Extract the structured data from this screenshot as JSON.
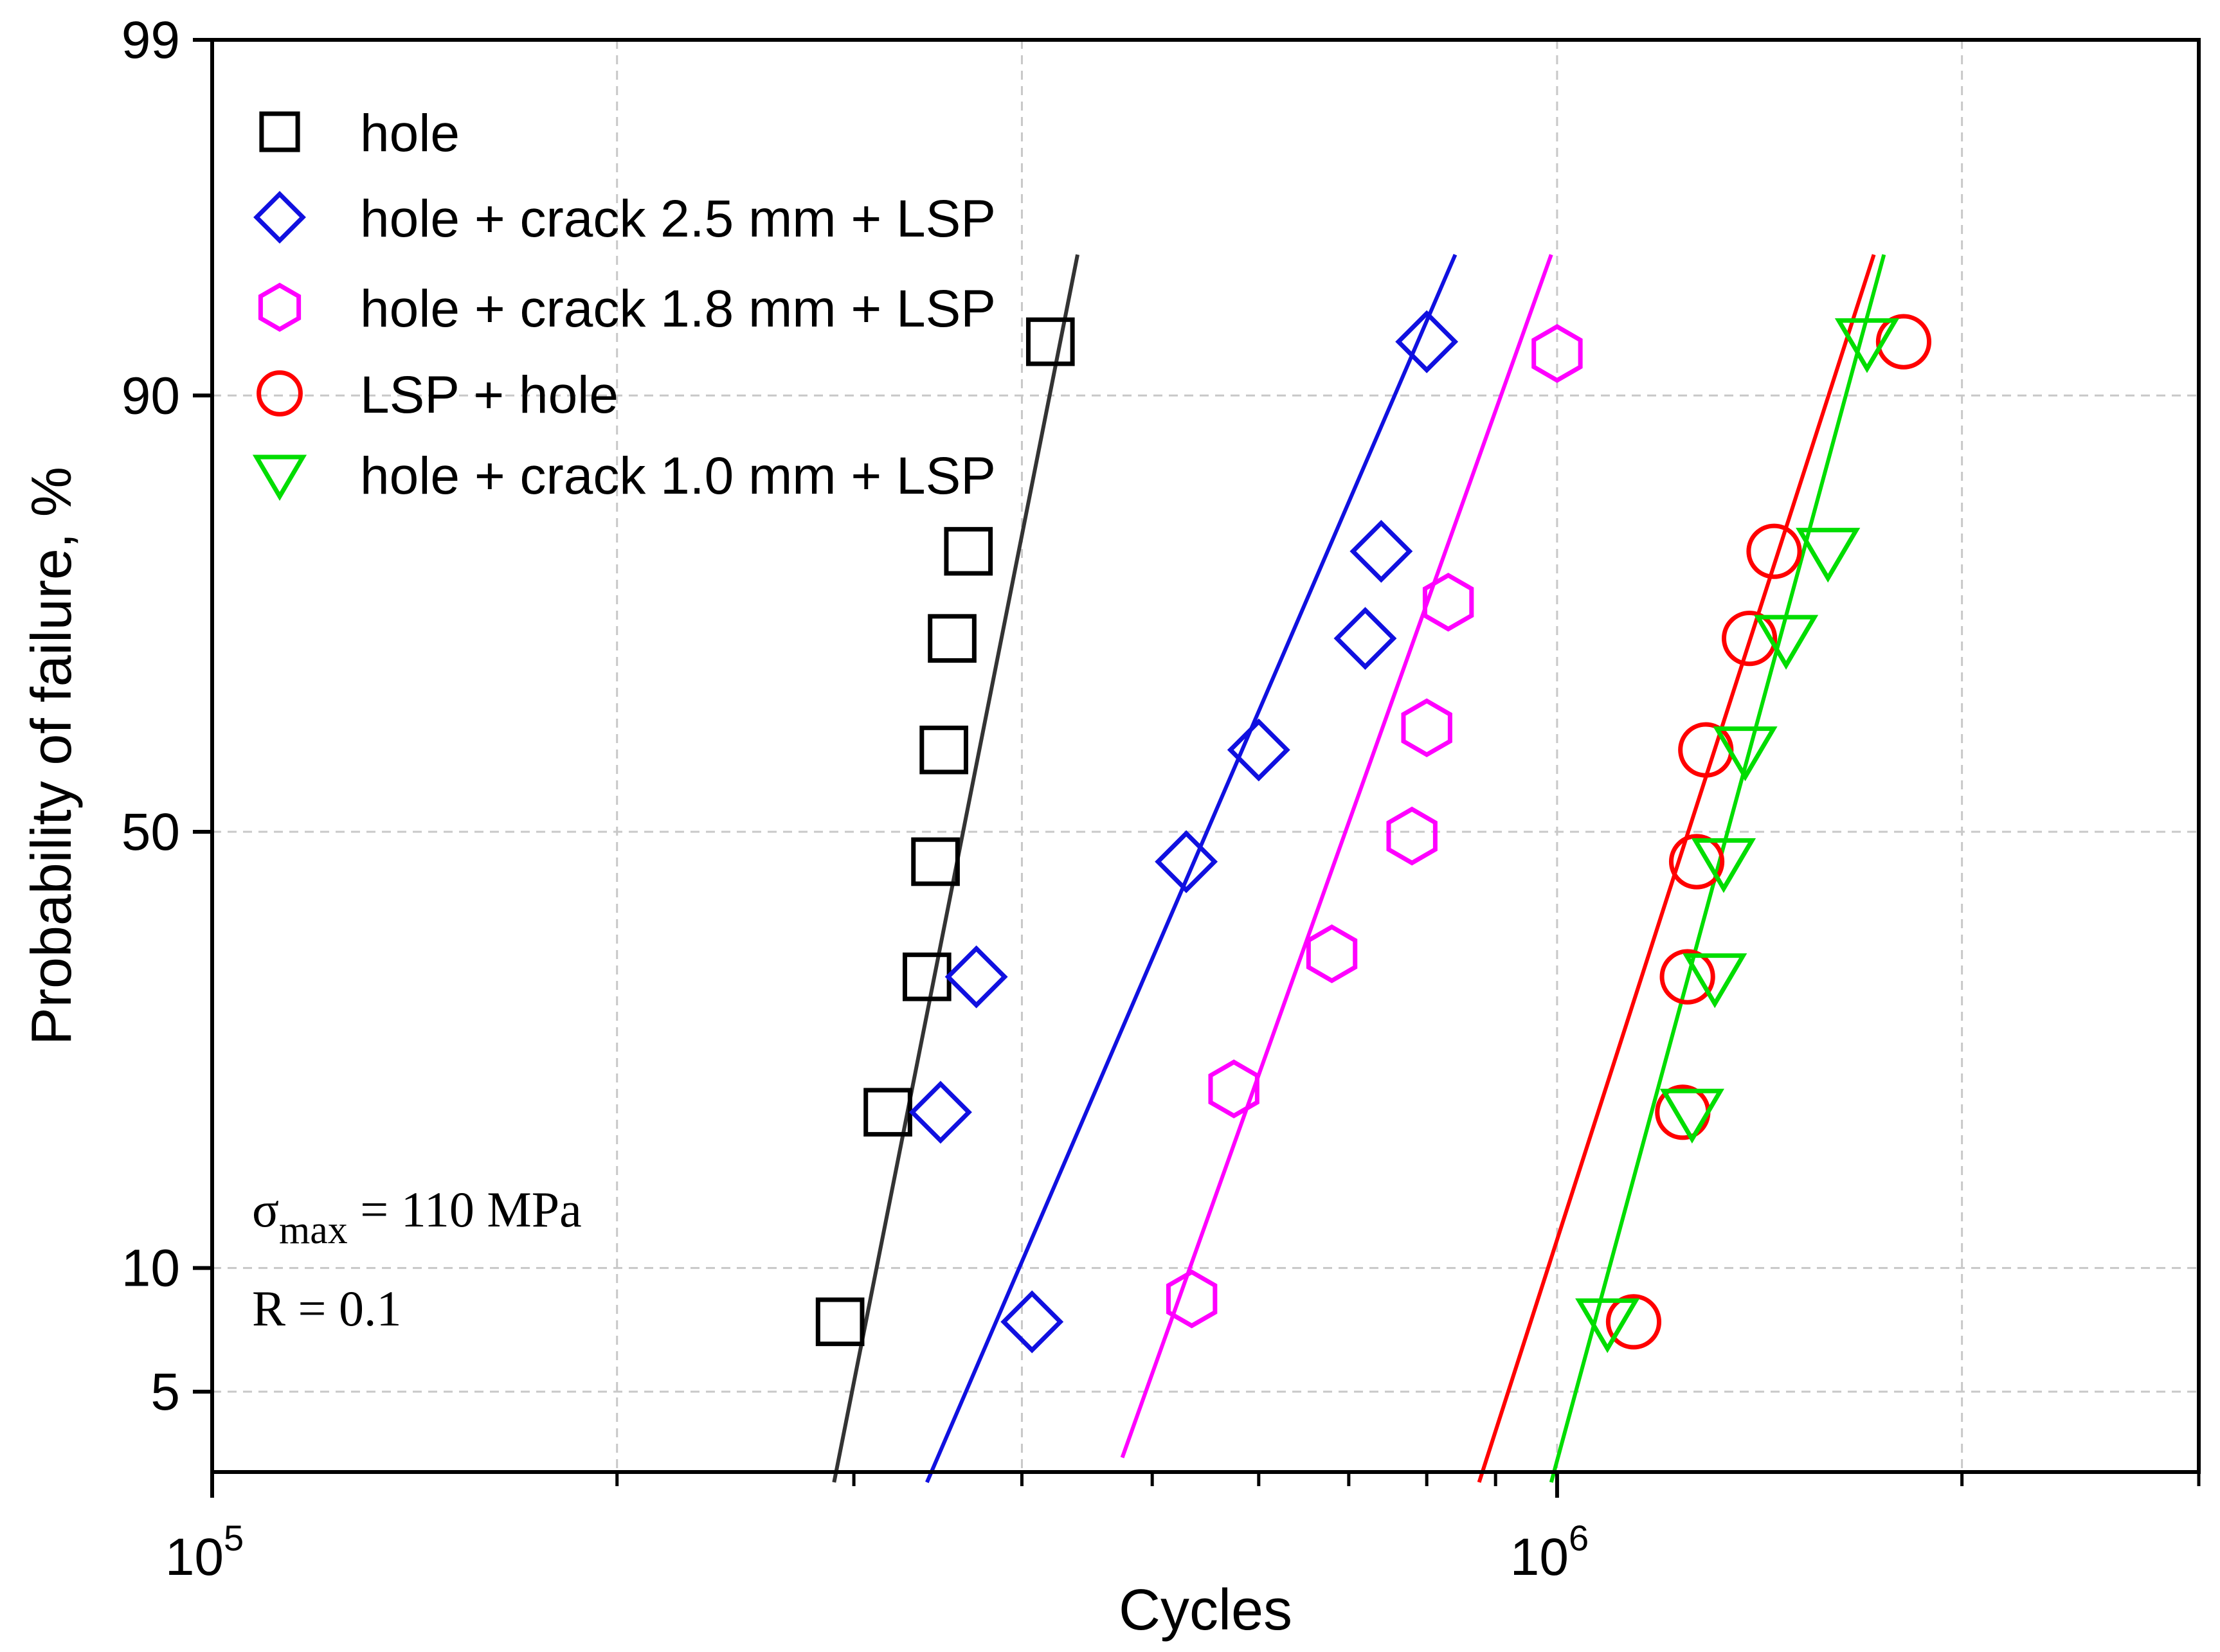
{
  "chart_data": {
    "type": "scatter",
    "subtype": "probability-plot",
    "xlabel": "Cycles",
    "ylabel": "Probability of failure,  %",
    "xscale": "log",
    "xlim": [
      100000,
      3000000
    ],
    "x_tick_labels": [
      {
        "value": 100000,
        "base": "10",
        "exp": "5"
      },
      {
        "value": 1000000,
        "base": "10",
        "exp": "6"
      }
    ],
    "yscale": "normal-probability",
    "ylim": [
      3,
      99
    ],
    "y_ticks": [
      5,
      10,
      50,
      90,
      99
    ],
    "y_tick_labels": [
      "5",
      "10",
      "50",
      "90",
      "99"
    ],
    "grid": true,
    "legend_position": "top-left",
    "series": [
      {
        "name": "hole",
        "color": "#000000",
        "marker": "square",
        "points": [
          [
            293000,
            7.5
          ],
          [
            318000,
            20.5
          ],
          [
            340000,
            33.5
          ],
          [
            345000,
            46.5
          ],
          [
            350000,
            59.5
          ],
          [
            355000,
            71.5
          ],
          [
            365000,
            79.5
          ],
          [
            420000,
            92.5
          ]
        ],
        "fit_line_color": "#333333",
        "fit_line": [
          [
            290000,
            2.8
          ],
          [
            440000,
            95.5
          ]
        ]
      },
      {
        "name": "hole + crack 2.5 mm + LSP",
        "color": "#1010e0",
        "marker": "diamond",
        "points": [
          [
            407000,
            7.5
          ],
          [
            348000,
            20.5
          ],
          [
            370000,
            33.5
          ],
          [
            530000,
            46.5
          ],
          [
            600000,
            59.5
          ],
          [
            720000,
            71.5
          ],
          [
            740000,
            79.5
          ],
          [
            800000,
            92.5
          ]
        ],
        "fit_line_color": "#1010e0",
        "fit_line": [
          [
            340000,
            2.8
          ],
          [
            840000,
            95.5
          ]
        ]
      },
      {
        "name": "hole + crack 1.8 mm + LSP",
        "color": "#ff00ff",
        "marker": "hexagon",
        "points": [
          [
            535000,
            8.5
          ],
          [
            575000,
            22.5
          ],
          [
            680000,
            36
          ],
          [
            780000,
            49.5
          ],
          [
            800000,
            62
          ],
          [
            830000,
            75
          ],
          [
            1000000,
            92
          ]
        ],
        "fit_line_color": "#ff00ff",
        "fit_line": [
          [
            475000,
            3.3
          ],
          [
            990000,
            95.5
          ]
        ]
      },
      {
        "name": "LSP + hole",
        "color": "#ff0000",
        "marker": "circle",
        "points": [
          [
            1140000,
            7.5
          ],
          [
            1240000,
            20.5
          ],
          [
            1250000,
            33.5
          ],
          [
            1270000,
            46.5
          ],
          [
            1290000,
            59.5
          ],
          [
            1390000,
            71.5
          ],
          [
            1450000,
            79.5
          ],
          [
            1810000,
            92.5
          ]
        ],
        "fit_line_color": "#ff0000",
        "fit_line": [
          [
            875000,
            2.8
          ],
          [
            1720000,
            95.5
          ]
        ]
      },
      {
        "name": "hole + crack 1.0 mm + LSP",
        "color": "#00dd00",
        "marker": "triangle-down",
        "points": [
          [
            1090000,
            7.5
          ],
          [
            1260000,
            20.5
          ],
          [
            1310000,
            33.5
          ],
          [
            1330000,
            46.5
          ],
          [
            1380000,
            59.5
          ],
          [
            1480000,
            71.5
          ],
          [
            1590000,
            79.5
          ],
          [
            1700000,
            92.5
          ]
        ],
        "fit_line_color": "#00dd00",
        "fit_line": [
          [
            990000,
            2.8
          ],
          [
            1750000,
            95.5
          ]
        ]
      }
    ],
    "annotations": [
      {
        "symbol": "σ",
        "subscript": "max",
        "rest": " = 110 MPa"
      },
      {
        "text": "R = 0.1"
      }
    ]
  }
}
